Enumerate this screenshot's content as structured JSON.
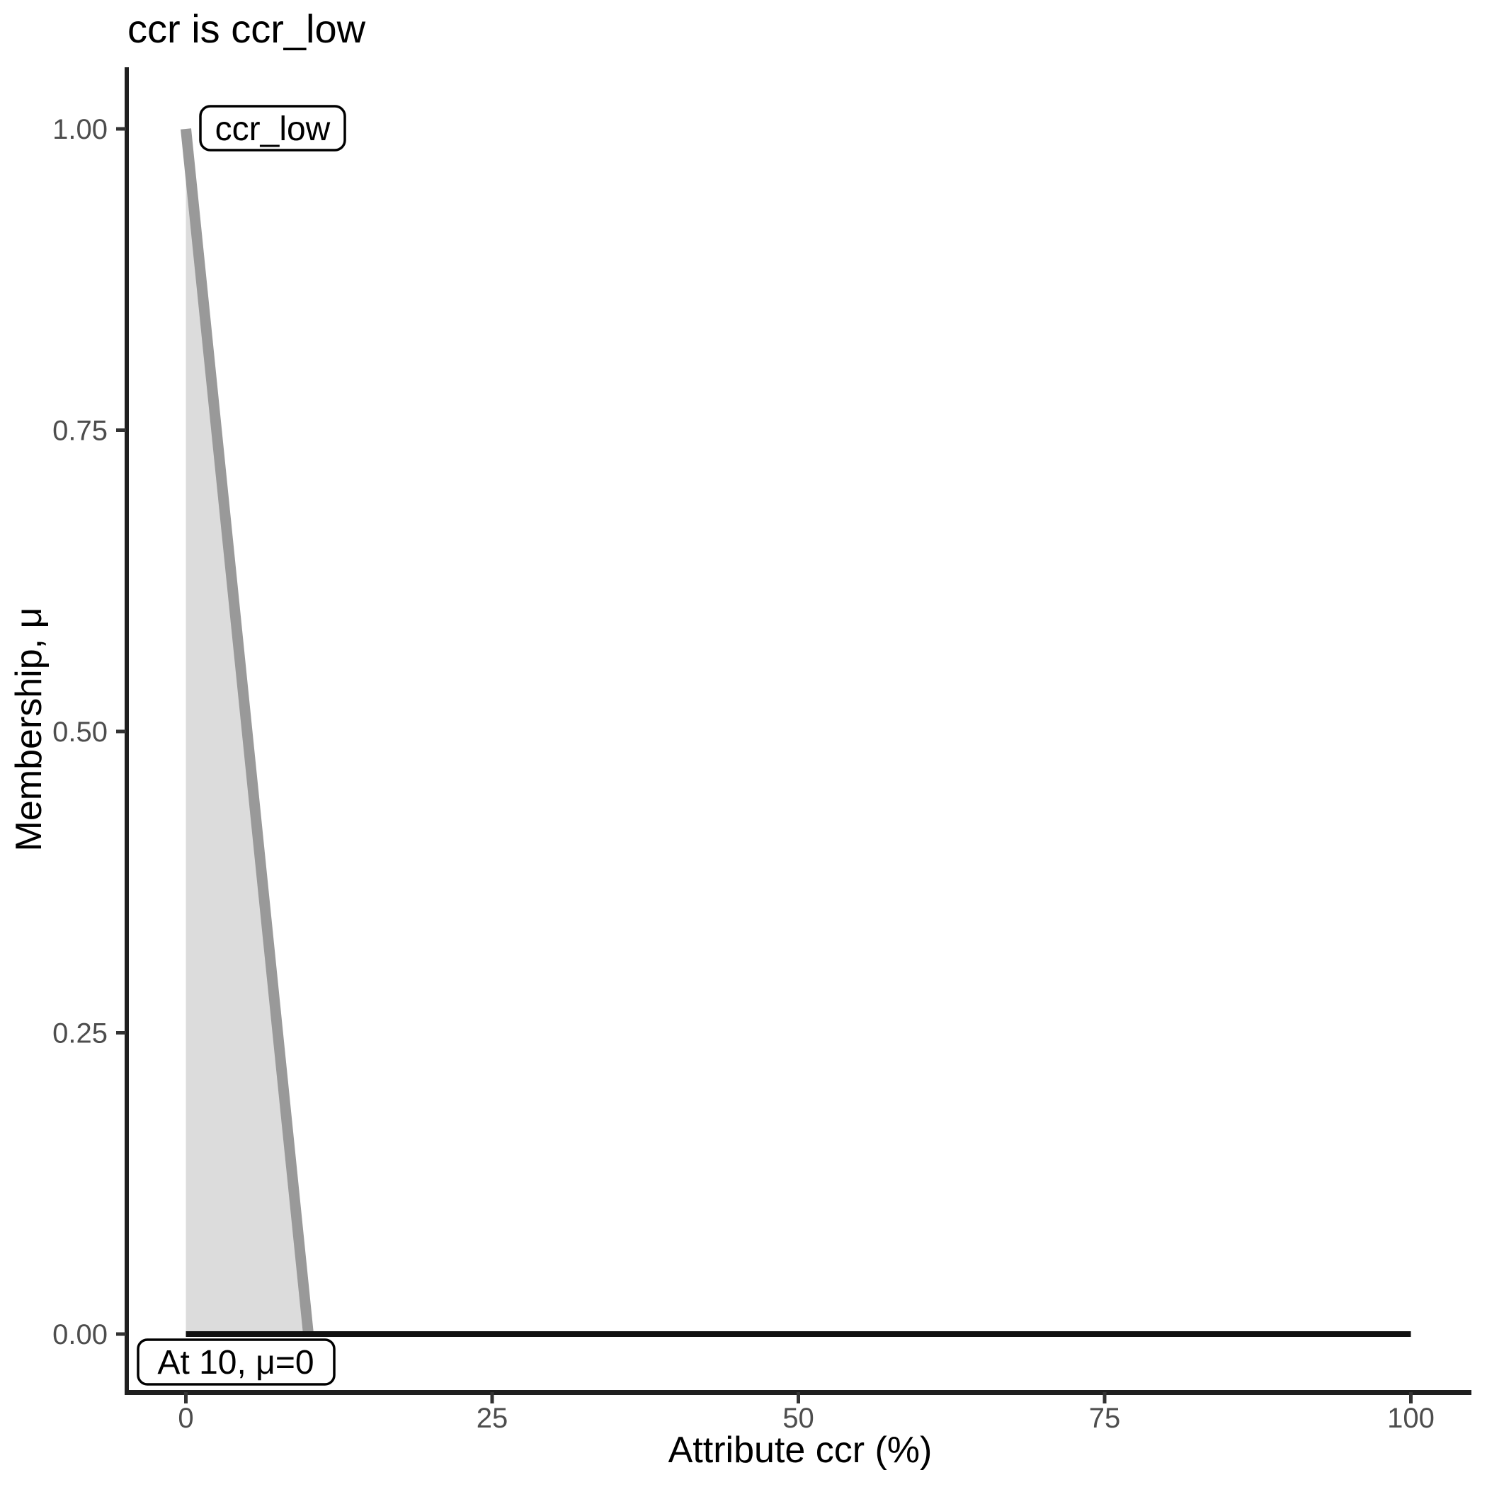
{
  "chart_data": {
    "type": "area",
    "title": "ccr is ccr_low",
    "xlabel": "Attribute ccr (%)",
    "ylabel": "Membership, μ",
    "xlim": [
      0,
      100
    ],
    "ylim": [
      0,
      1
    ],
    "x_ticks": [
      0,
      25,
      50,
      75,
      100
    ],
    "x_tick_labels": [
      "0",
      "25",
      "50",
      "75",
      "100"
    ],
    "y_ticks": [
      0,
      0.25,
      0.5,
      0.75,
      1
    ],
    "y_tick_labels": [
      "0.00",
      "0.25",
      "0.50",
      "0.75",
      "1.00"
    ],
    "grid": false,
    "legend": false,
    "series": [
      {
        "name": "ccr_low membership edge",
        "x": [
          0,
          10
        ],
        "y": [
          1,
          0
        ],
        "color": "#999999",
        "stroke_width": 15
      },
      {
        "name": "zero membership baseline",
        "x": [
          0,
          100
        ],
        "y": [
          0,
          0
        ],
        "color": "#111111",
        "stroke_width": 8
      }
    ],
    "fill": {
      "name": "ccr_low area",
      "points": [
        [
          0,
          1
        ],
        [
          10,
          0
        ],
        [
          0,
          0
        ]
      ],
      "color": "#dcdcdc"
    },
    "annotations": [
      {
        "text": "ccr_low",
        "x": 1.3,
        "y": 1.0
      },
      {
        "text": "At 10, μ=0",
        "x": 4.0,
        "y": -0.02
      }
    ],
    "colors": {
      "axis_line": "#1f1f1f",
      "tick_mark": "#333333",
      "tick_label": "#4d4d4d",
      "title_text": "#000000",
      "label_box_bg": "#ffffff",
      "label_box_border": "#000000"
    }
  }
}
